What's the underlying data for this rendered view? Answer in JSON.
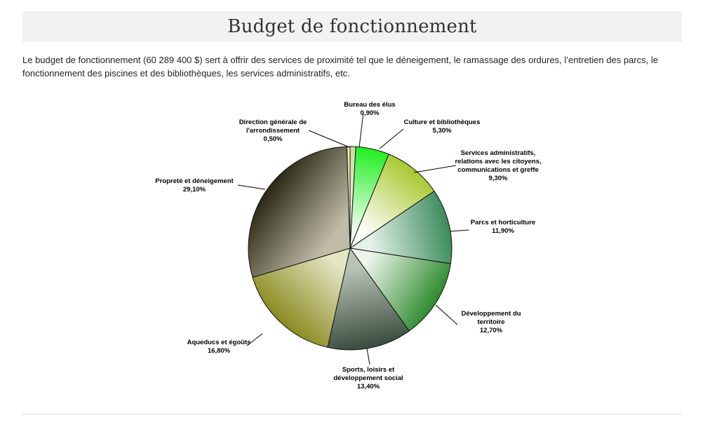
{
  "page": {
    "title": "Budget de fonctionnement",
    "intro": "Le budget de fonctionnement (60 289 400 $) sert à offrir des services de proximité tel que le déneigement, le ramassage des ordures, l’entretien des parcs, le fonctionnement des piscines et des bibliothèques, les services administratifs, etc."
  },
  "chart_data": {
    "type": "pie",
    "title": "",
    "start_angle_deg": 0,
    "direction": "clockwise",
    "slices": [
      {
        "name": "Bureau des élus",
        "label_lines": [
          "Bureau des élus"
        ],
        "value": 0.9,
        "value_label": "0,90%",
        "colors": [
          "#f6f6f0",
          "#c8e0a0"
        ]
      },
      {
        "name": "Culture et bibliothèques",
        "label_lines": [
          "Culture et bibliothèques"
        ],
        "value": 5.3,
        "value_label": "5,30%",
        "colors": [
          "#eaffea",
          "#22ee22"
        ]
      },
      {
        "name": "Services administratifs, relations avec les citoyens, communications et greffe",
        "label_lines": [
          "Services administratifs,",
          "relations avec les citoyens,",
          "communications et greffe"
        ],
        "value": 9.3,
        "value_label": "9,30%",
        "colors": [
          "#ffffff",
          "#a8c830"
        ]
      },
      {
        "name": "Parcs et horticulture",
        "label_lines": [
          "Parcs et horticulture"
        ],
        "value": 11.9,
        "value_label": "11,90%",
        "colors": [
          "#e6f2ec",
          "#3a8a5a"
        ]
      },
      {
        "name": "Développement du territoire",
        "label_lines": [
          "Développement du",
          "territoire"
        ],
        "value": 12.7,
        "value_label": "12,70%",
        "colors": [
          "#eef6ec",
          "#2e8a2e"
        ]
      },
      {
        "name": "Sports, loisirs et développement social",
        "label_lines": [
          "Sports, loisirs et",
          "développement social"
        ],
        "value": 13.4,
        "value_label": "13,40%",
        "colors": [
          "#b6c4b4",
          "#3a4a3e"
        ]
      },
      {
        "name": "Aqueducs et égoûts",
        "label_lines": [
          "Aqueducs et égoûts"
        ],
        "value": 16.8,
        "value_label": "16,80%",
        "colors": [
          "#e4e6c4",
          "#8a8a20"
        ]
      },
      {
        "name": "Propreté et déneigement",
        "label_lines": [
          "Propreté et déneigement"
        ],
        "value": 29.1,
        "value_label": "29,10%",
        "colors": [
          "#c0bca8",
          "#2a2812"
        ]
      },
      {
        "name": "Direction générale de l'arrondissement",
        "label_lines": [
          "Direction générale de",
          "l'arrondissement"
        ],
        "value": 0.5,
        "value_label": "0,50%",
        "colors": [
          "#ffffe0",
          "#e8e8a0"
        ]
      }
    ]
  }
}
